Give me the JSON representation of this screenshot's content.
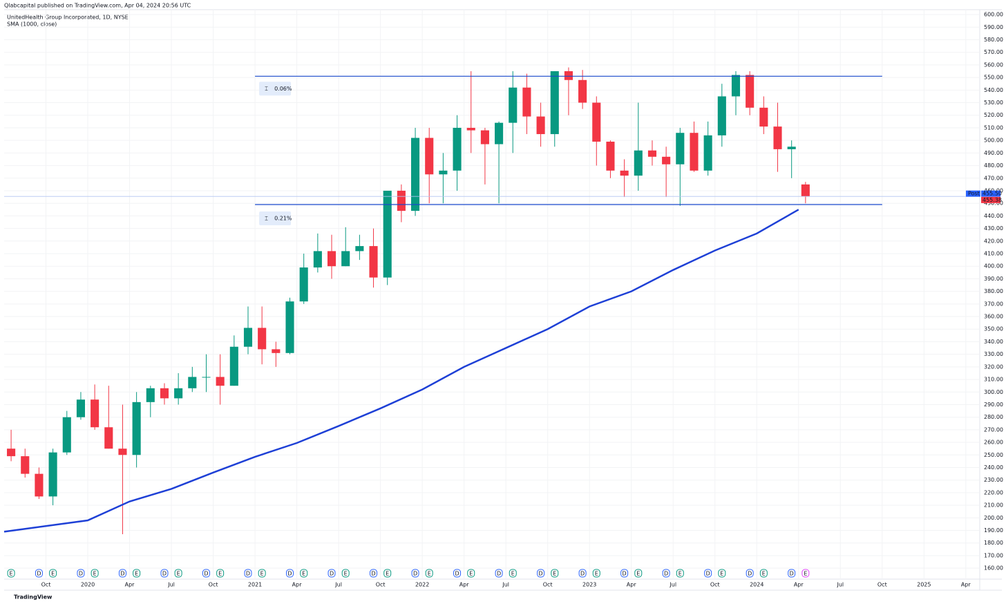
{
  "header": {
    "publisher": "Qlabcapital published on TradingView.com, Apr 04, 2024 20:56 UTC",
    "symbol": "UnitedHealth Group Incorporated, 1D, NYSE",
    "indicator": "SMA (1000, close)"
  },
  "footer": {
    "brand": "TradingView"
  },
  "chart_data": {
    "type": "candlestick",
    "x": [
      "2019-07",
      "2019-08",
      "2019-09",
      "2019-10",
      "2019-11",
      "2019-12",
      "2020-01",
      "2020-02",
      "2020-03",
      "2020-04",
      "2020-05",
      "2020-06",
      "2020-07",
      "2020-08",
      "2020-09",
      "2020-10",
      "2020-11",
      "2020-12",
      "2021-01",
      "2021-02",
      "2021-03",
      "2021-04",
      "2021-05",
      "2021-06",
      "2021-07",
      "2021-08",
      "2021-09",
      "2021-10",
      "2021-11",
      "2021-12",
      "2022-01",
      "2022-02",
      "2022-03",
      "2022-04",
      "2022-05",
      "2022-06",
      "2022-07",
      "2022-08",
      "2022-09",
      "2022-10",
      "2022-11",
      "2022-12",
      "2023-01",
      "2023-02",
      "2023-03",
      "2023-04",
      "2023-05",
      "2023-06",
      "2023-07",
      "2023-08",
      "2023-09",
      "2023-10",
      "2023-11",
      "2023-12",
      "2024-01",
      "2024-02",
      "2024-03",
      "2024-04"
    ],
    "open": [
      255,
      249,
      235,
      217,
      252,
      280,
      294,
      272,
      255,
      250,
      292,
      303,
      295,
      303,
      312,
      312,
      305,
      336,
      351,
      334,
      331,
      372,
      399,
      412,
      400,
      412,
      416,
      391,
      460,
      444,
      502,
      473,
      476,
      510,
      508,
      497,
      514,
      542,
      519,
      505,
      555,
      548,
      530,
      499,
      476,
      472,
      492,
      487,
      481,
      506,
      476,
      504,
      535,
      552,
      526,
      511,
      493,
      465
    ],
    "high": [
      270,
      255,
      240,
      255,
      285,
      300,
      306,
      305,
      290,
      300,
      305,
      307,
      315,
      320,
      330,
      330,
      345,
      368,
      368,
      340,
      375,
      410,
      426,
      425,
      431,
      425,
      430,
      460,
      465,
      510,
      510,
      490,
      520,
      555,
      510,
      515,
      555,
      553,
      530,
      555,
      558,
      556,
      535,
      500,
      485,
      530,
      500,
      495,
      510,
      515,
      515,
      545,
      555,
      555,
      535,
      530,
      500,
      467
    ],
    "low": [
      245,
      232,
      215,
      210,
      250,
      278,
      270,
      255,
      187,
      240,
      280,
      290,
      290,
      300,
      300,
      290,
      305,
      330,
      322,
      320,
      330,
      370,
      395,
      390,
      400,
      405,
      383,
      385,
      435,
      440,
      450,
      450,
      460,
      490,
      465,
      450,
      490,
      505,
      495,
      495,
      520,
      525,
      480,
      470,
      455,
      460,
      480,
      455,
      448,
      475,
      472,
      495,
      520,
      520,
      505,
      475,
      470,
      450
    ],
    "close": [
      249,
      235,
      217,
      252,
      280,
      294,
      272,
      255,
      250,
      292,
      303,
      295,
      303,
      312,
      312,
      305,
      336,
      351,
      334,
      331,
      372,
      399,
      412,
      400,
      412,
      416,
      391,
      460,
      444,
      502,
      473,
      476,
      510,
      508,
      497,
      514,
      542,
      519,
      505,
      555,
      548,
      530,
      499,
      476,
      472,
      492,
      487,
      481,
      506,
      476,
      504,
      535,
      552,
      526,
      511,
      493,
      495,
      455.38
    ],
    "up_color": "#089981",
    "down_color": "#f23645",
    "sma": {
      "name": "SMA (1000, close)",
      "color": "#1e40d6",
      "x": [
        "2019-07",
        "2020-01",
        "2020-04",
        "2020-07",
        "2020-10",
        "2021-01",
        "2021-04",
        "2021-07",
        "2021-10",
        "2022-01",
        "2022-04",
        "2022-07",
        "2022-10",
        "2023-01",
        "2023-04",
        "2023-07",
        "2023-10",
        "2024-01",
        "2024-04"
      ],
      "values": [
        189,
        198,
        213,
        223,
        236,
        248.5,
        259.5,
        273,
        287,
        302,
        320,
        335,
        350,
        368,
        380,
        397,
        412.5,
        426,
        445
      ]
    },
    "levels": [
      {
        "from": "2021-01",
        "to": "2024-10",
        "price": 551,
        "label": "0.06%"
      },
      {
        "from": "2021-01",
        "to": "2024-10",
        "price": 449,
        "label": "0.21%"
      }
    ],
    "level_color": "#1848cc",
    "price_tags": [
      {
        "name": "Post",
        "value": 455.5,
        "label": "455.50",
        "color": "#2962ff"
      },
      {
        "value": 455.38,
        "label": "455.38",
        "color": "#f23645"
      }
    ],
    "events": [
      {
        "x": "2019-07",
        "label": "E",
        "color": "#089981"
      },
      {
        "x": "2019-09",
        "label": "D",
        "color": "#2962ff"
      },
      {
        "x": "2019-10",
        "label": "E",
        "color": "#089981"
      },
      {
        "x": "2019-12",
        "label": "D",
        "color": "#2962ff"
      },
      {
        "x": "2020-01",
        "label": "E",
        "color": "#089981"
      },
      {
        "x": "2020-03",
        "label": "D",
        "color": "#2962ff"
      },
      {
        "x": "2020-04",
        "label": "E",
        "color": "#089981"
      },
      {
        "x": "2020-06",
        "label": "D",
        "color": "#2962ff"
      },
      {
        "x": "2020-07",
        "label": "E",
        "color": "#089981"
      },
      {
        "x": "2020-09",
        "label": "D",
        "color": "#2962ff"
      },
      {
        "x": "2020-10",
        "label": "E",
        "color": "#089981"
      },
      {
        "x": "2020-12",
        "label": "D",
        "color": "#2962ff"
      },
      {
        "x": "2021-01",
        "label": "E",
        "color": "#089981"
      },
      {
        "x": "2021-03",
        "label": "D",
        "color": "#2962ff"
      },
      {
        "x": "2021-04",
        "label": "E",
        "color": "#089981"
      },
      {
        "x": "2021-06",
        "label": "D",
        "color": "#2962ff"
      },
      {
        "x": "2021-07",
        "label": "E",
        "color": "#089981"
      },
      {
        "x": "2021-09",
        "label": "D",
        "color": "#2962ff"
      },
      {
        "x": "2021-10",
        "label": "E",
        "color": "#089981"
      },
      {
        "x": "2021-12",
        "label": "D",
        "color": "#2962ff"
      },
      {
        "x": "2022-01",
        "label": "E",
        "color": "#089981"
      },
      {
        "x": "2022-03",
        "label": "D",
        "color": "#2962ff"
      },
      {
        "x": "2022-04",
        "label": "E",
        "color": "#089981"
      },
      {
        "x": "2022-06",
        "label": "D",
        "color": "#2962ff"
      },
      {
        "x": "2022-07",
        "label": "E",
        "color": "#089981"
      },
      {
        "x": "2022-09",
        "label": "D",
        "color": "#2962ff"
      },
      {
        "x": "2022-10",
        "label": "E",
        "color": "#089981"
      },
      {
        "x": "2022-12",
        "label": "D",
        "color": "#2962ff"
      },
      {
        "x": "2023-01",
        "label": "E",
        "color": "#089981"
      },
      {
        "x": "2023-03",
        "label": "D",
        "color": "#2962ff"
      },
      {
        "x": "2023-04",
        "label": "E",
        "color": "#089981"
      },
      {
        "x": "2023-06",
        "label": "D",
        "color": "#2962ff"
      },
      {
        "x": "2023-07",
        "label": "E",
        "color": "#089981"
      },
      {
        "x": "2023-09",
        "label": "D",
        "color": "#2962ff"
      },
      {
        "x": "2023-10",
        "label": "E",
        "color": "#089981"
      },
      {
        "x": "2023-12",
        "label": "D",
        "color": "#2962ff"
      },
      {
        "x": "2024-01",
        "label": "E",
        "color": "#089981"
      },
      {
        "x": "2024-03",
        "label": "D",
        "color": "#2962ff"
      },
      {
        "x": "2024-04",
        "label": "E",
        "color": "#e040fb"
      }
    ],
    "xlim": [
      "2019-07",
      "2025-05"
    ],
    "xticks": [
      {
        "value": "2019-10",
        "label": "Oct"
      },
      {
        "value": "2020-01",
        "label": "2020"
      },
      {
        "value": "2020-04",
        "label": "Apr"
      },
      {
        "value": "2020-07",
        "label": "Jul"
      },
      {
        "value": "2020-10",
        "label": "Oct"
      },
      {
        "value": "2021-01",
        "label": "2021"
      },
      {
        "value": "2021-04",
        "label": "Apr"
      },
      {
        "value": "2021-07",
        "label": "Jul"
      },
      {
        "value": "2021-10",
        "label": "Oct"
      },
      {
        "value": "2022-01",
        "label": "2022"
      },
      {
        "value": "2022-04",
        "label": "Apr"
      },
      {
        "value": "2022-07",
        "label": "Jul"
      },
      {
        "value": "2022-10",
        "label": "Oct"
      },
      {
        "value": "2023-01",
        "label": "2023"
      },
      {
        "value": "2023-04",
        "label": "Apr"
      },
      {
        "value": "2023-07",
        "label": "Jul"
      },
      {
        "value": "2023-10",
        "label": "Oct"
      },
      {
        "value": "2024-01",
        "label": "2024"
      },
      {
        "value": "2024-04",
        "label": "Apr"
      },
      {
        "value": "2024-07",
        "label": "Jul"
      },
      {
        "value": "2024-10",
        "label": "Oct"
      },
      {
        "value": "2025-01",
        "label": "2025"
      },
      {
        "value": "2025-04",
        "label": "Apr"
      }
    ],
    "ylim": [
      151.3,
      603.9
    ],
    "yticks": [
      {
        "value": 160,
        "label": "160.00"
      },
      {
        "value": 170,
        "label": "170.00"
      },
      {
        "value": 180,
        "label": "180.00"
      },
      {
        "value": 190,
        "label": "190.00"
      },
      {
        "value": 200,
        "label": "200.00"
      },
      {
        "value": 210,
        "label": "210.00"
      },
      {
        "value": 220,
        "label": "220.00"
      },
      {
        "value": 230,
        "label": "230.00"
      },
      {
        "value": 240,
        "label": "240.00"
      },
      {
        "value": 250,
        "label": "250.00"
      },
      {
        "value": 260,
        "label": "260.00"
      },
      {
        "value": 270,
        "label": "270.00"
      },
      {
        "value": 280,
        "label": "280.00"
      },
      {
        "value": 290,
        "label": "290.00"
      },
      {
        "value": 300,
        "label": "300.00"
      },
      {
        "value": 310,
        "label": "310.00"
      },
      {
        "value": 320,
        "label": "320.00"
      },
      {
        "value": 330,
        "label": "330.00"
      },
      {
        "value": 340,
        "label": "340.00"
      },
      {
        "value": 350,
        "label": "350.00"
      },
      {
        "value": 360,
        "label": "360.00"
      },
      {
        "value": 370,
        "label": "370.00"
      },
      {
        "value": 380,
        "label": "380.00"
      },
      {
        "value": 390,
        "label": "390.00"
      },
      {
        "value": 400,
        "label": "400.00"
      },
      {
        "value": 410,
        "label": "410.00"
      },
      {
        "value": 420,
        "label": "420.00"
      },
      {
        "value": 430,
        "label": "430.00"
      },
      {
        "value": 440,
        "label": "440.00"
      },
      {
        "value": 450,
        "label": "450.00"
      },
      {
        "value": 460,
        "label": "460.00"
      },
      {
        "value": 470,
        "label": "470.00"
      },
      {
        "value": 480,
        "label": "480.00"
      },
      {
        "value": 490,
        "label": "490.00"
      },
      {
        "value": 500,
        "label": "500.00"
      },
      {
        "value": 510,
        "label": "510.00"
      },
      {
        "value": 520,
        "label": "520.00"
      },
      {
        "value": 530,
        "label": "530.00"
      },
      {
        "value": 540,
        "label": "540.00"
      },
      {
        "value": 550,
        "label": "550.00"
      },
      {
        "value": 560,
        "label": "560.00"
      },
      {
        "value": 570,
        "label": "570.00"
      },
      {
        "value": 580,
        "label": "580.00"
      },
      {
        "value": 590,
        "label": "590.00"
      },
      {
        "value": 600,
        "label": "600.00"
      }
    ],
    "grid": true
  }
}
